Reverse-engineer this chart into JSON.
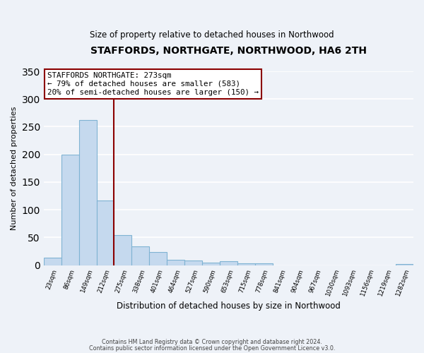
{
  "title": "STAFFORDS, NORTHGATE, NORTHWOOD, HA6 2TH",
  "subtitle": "Size of property relative to detached houses in Northwood",
  "xlabel": "Distribution of detached houses by size in Northwood",
  "ylabel": "Number of detached properties",
  "bin_labels": [
    "23sqm",
    "86sqm",
    "149sqm",
    "212sqm",
    "275sqm",
    "338sqm",
    "401sqm",
    "464sqm",
    "527sqm",
    "590sqm",
    "653sqm",
    "715sqm",
    "778sqm",
    "841sqm",
    "904sqm",
    "967sqm",
    "1030sqm",
    "1093sqm",
    "1156sqm",
    "1219sqm",
    "1282sqm"
  ],
  "bar_values": [
    13,
    200,
    262,
    117,
    54,
    34,
    24,
    10,
    8,
    5,
    7,
    3,
    3,
    0,
    0,
    0,
    0,
    0,
    0,
    0,
    2
  ],
  "bar_color": "#c5d9ee",
  "bar_edge_color": "#7fb3d3",
  "reference_line_x": 4,
  "annotation_title": "STAFFORDS NORTHGATE: 273sqm",
  "annotation_line1": "← 79% of detached houses are smaller (583)",
  "annotation_line2": "20% of semi-detached houses are larger (150) →",
  "ylim": [
    0,
    350
  ],
  "yticks": [
    0,
    50,
    100,
    150,
    200,
    250,
    300,
    350
  ],
  "footer_line1": "Contains HM Land Registry data © Crown copyright and database right 2024.",
  "footer_line2": "Contains public sector information licensed under the Open Government Licence v3.0.",
  "bg_color": "#eef2f8",
  "plot_bg_color": "#eef2f8"
}
